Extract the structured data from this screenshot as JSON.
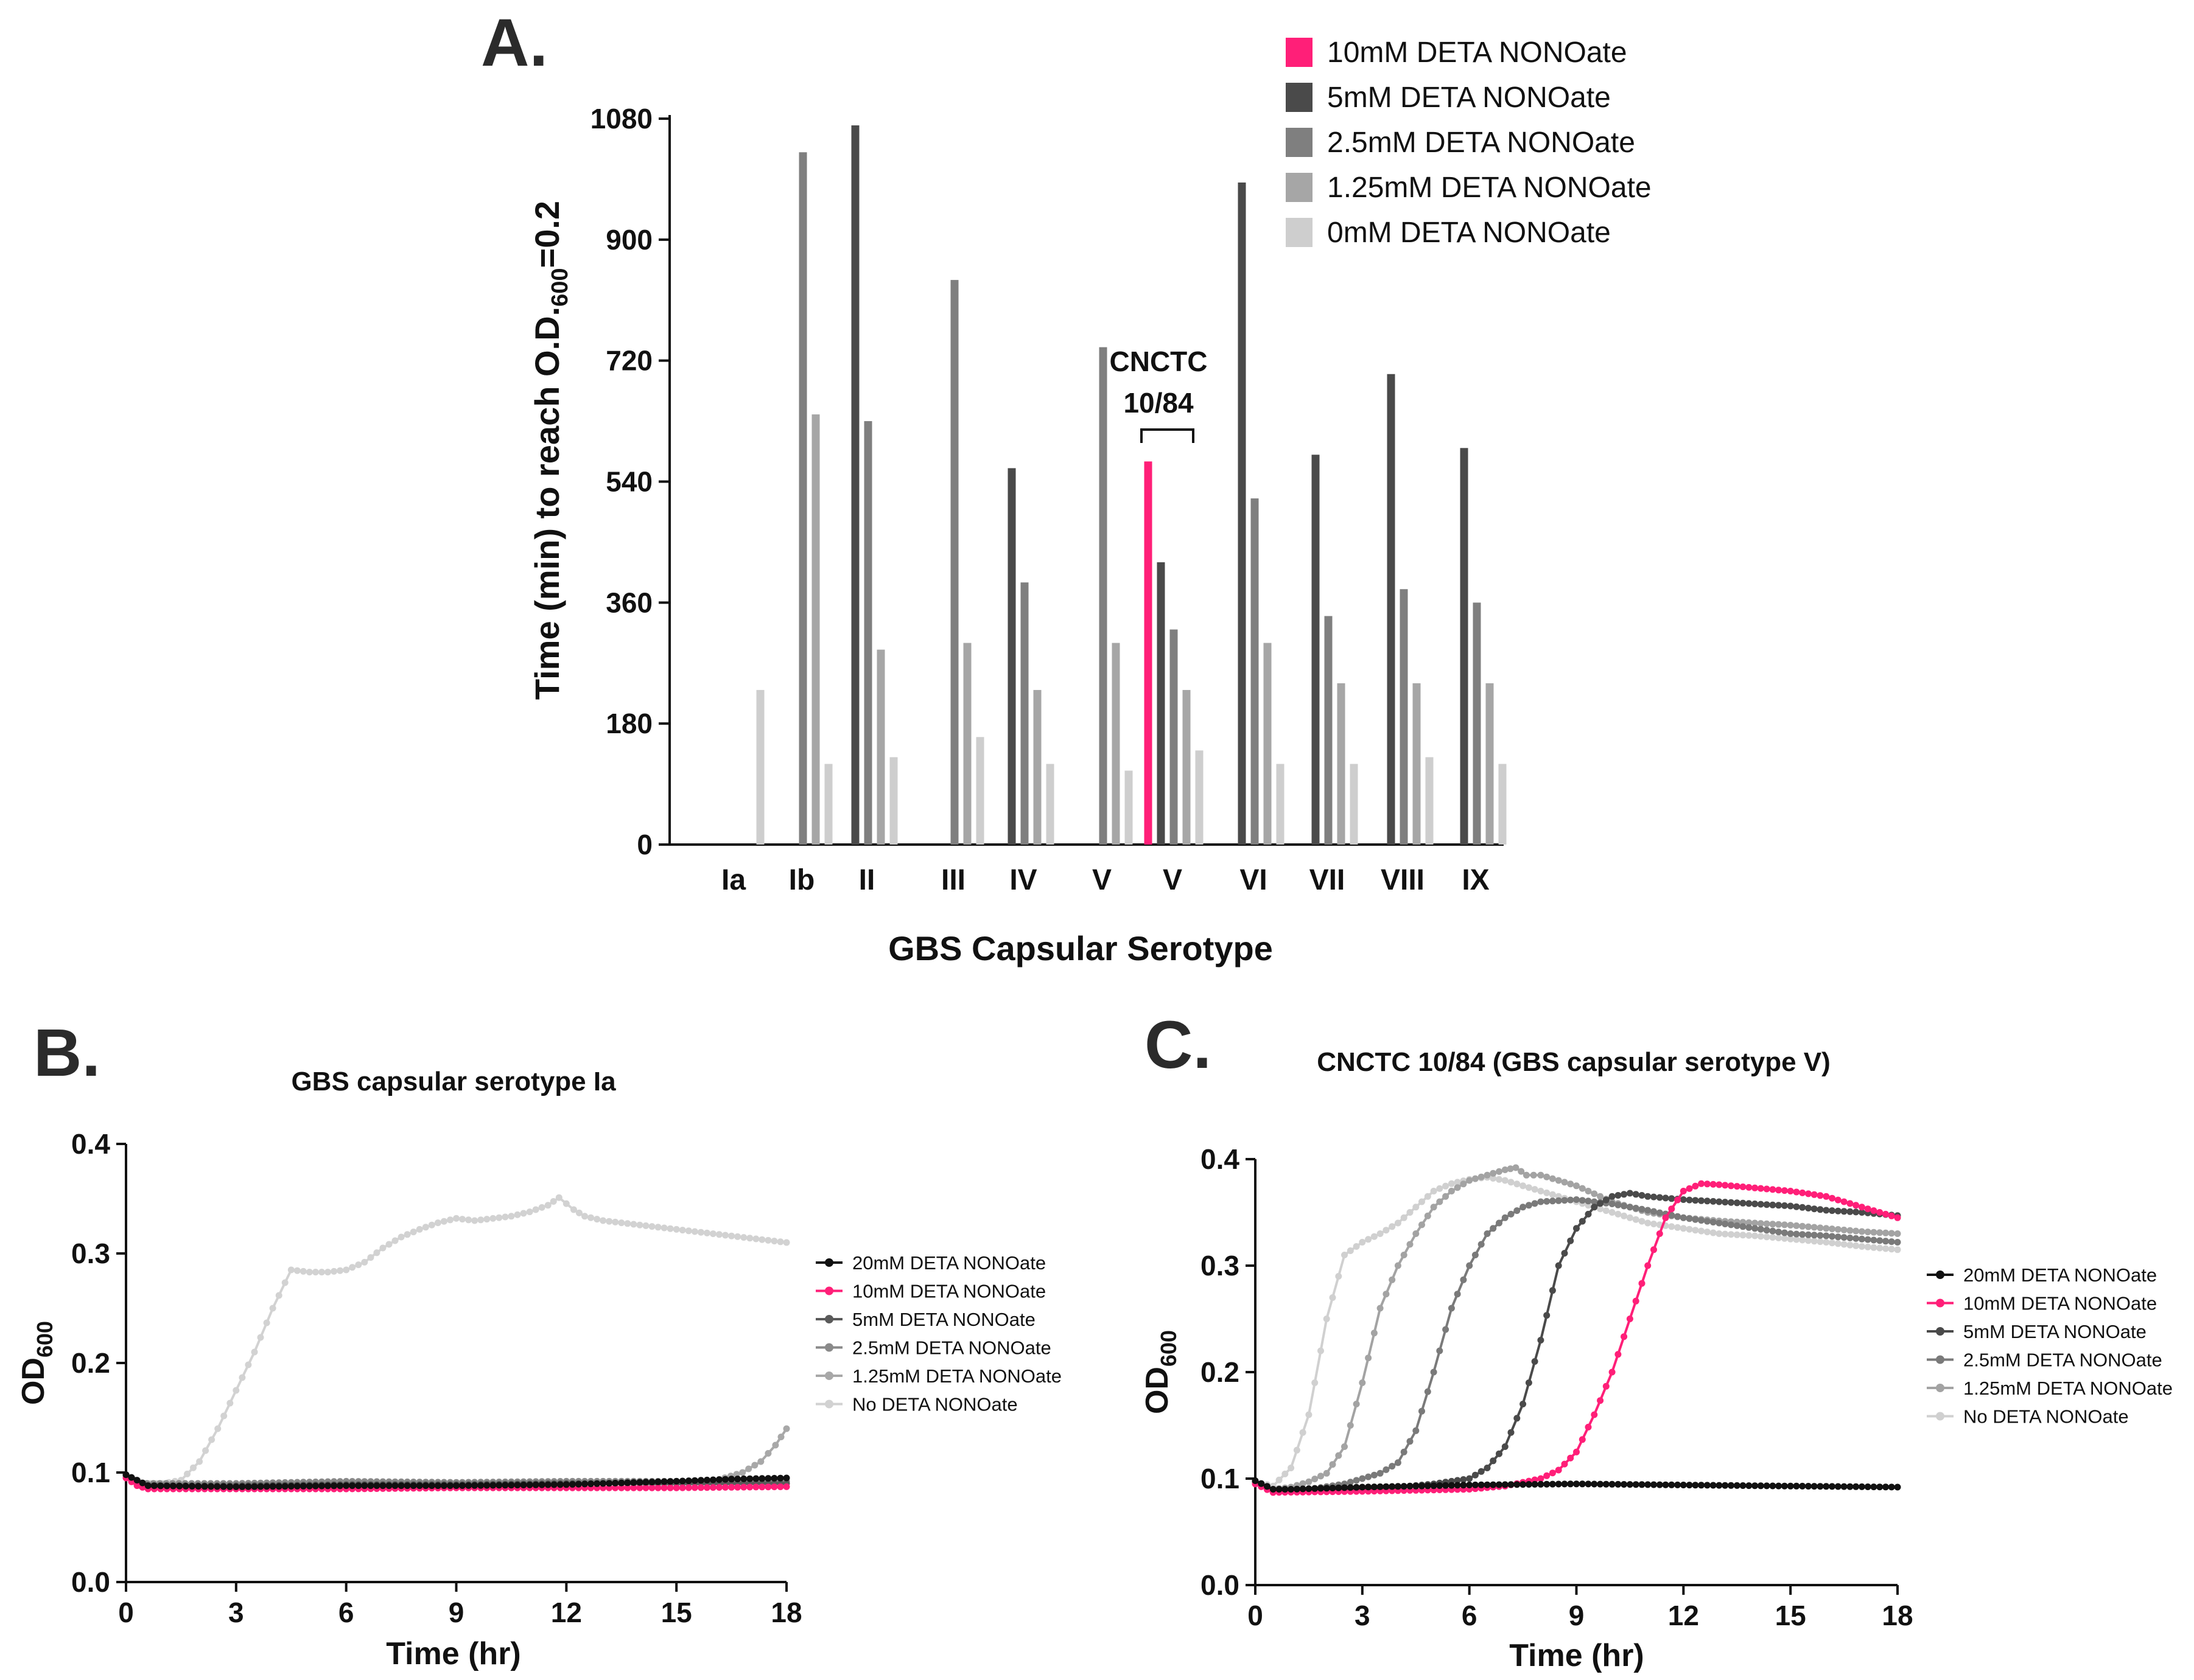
{
  "panels": {
    "a": {
      "letter": "A."
    },
    "b": {
      "letter": "B."
    },
    "c": {
      "letter": "C."
    }
  },
  "chart_data": [
    {
      "id": "A",
      "type": "bar",
      "title": "",
      "xlabel": "GBS Capsular Serotype",
      "ylabel": "Time (min) to reach O.D.600=0.2",
      "ylabel_parts": {
        "main": "Time (min) to reach O.D.",
        "sub": "600",
        "tail": "=0.2"
      },
      "ylim": [
        0,
        1080
      ],
      "yticks": [
        "0",
        "180",
        "360",
        "540",
        "720",
        "900",
        "1080"
      ],
      "annotation": {
        "line1": "CNCTC",
        "line2": "10/84"
      },
      "categories": [
        "Ia",
        "Ib",
        "II",
        "III",
        "IV",
        "V",
        "V",
        "VI",
        "VII",
        "VIII",
        "IX"
      ],
      "series": [
        {
          "name": "10mM DETA NONOate",
          "color": "#ff1f78",
          "values": [
            null,
            null,
            null,
            null,
            null,
            null,
            570,
            null,
            null,
            null,
            null
          ]
        },
        {
          "name": "5mM DETA NONOate",
          "color": "#4a4a4a",
          "values": [
            null,
            null,
            1070,
            null,
            560,
            null,
            420,
            985,
            580,
            700,
            590
          ]
        },
        {
          "name": "2.5mM DETA NONOate",
          "color": "#7f7f7f",
          "values": [
            null,
            1030,
            630,
            840,
            390,
            740,
            320,
            515,
            340,
            380,
            360
          ]
        },
        {
          "name": "1.25mM DETA NONOate",
          "color": "#a6a6a6",
          "values": [
            null,
            640,
            290,
            300,
            230,
            300,
            230,
            300,
            240,
            240,
            240
          ]
        },
        {
          "name": "0mM DETA NONOate",
          "color": "#cecece",
          "values": [
            230,
            120,
            130,
            160,
            120,
            110,
            140,
            120,
            120,
            130,
            120
          ]
        }
      ]
    },
    {
      "id": "B",
      "type": "line",
      "title": "GBS capsular serotype Ia",
      "xlabel": "Time (hr)",
      "ylabel_main": "OD",
      "ylabel_sub": "600",
      "xlim": [
        0,
        18
      ],
      "ylim": [
        0,
        0.4
      ],
      "xticks": [
        "0",
        "3",
        "6",
        "9",
        "12",
        "15",
        "18"
      ],
      "yticks": [
        "0.0",
        "0.1",
        "0.2",
        "0.3",
        "0.4"
      ],
      "legend_position": "right",
      "series": [
        {
          "name": "20mM DETA NONOate",
          "color": "#111111",
          "points": [
            [
              0,
              0.098
            ],
            [
              0.3,
              0.093
            ],
            [
              0.6,
              0.088
            ],
            [
              3,
              0.087
            ],
            [
              6,
              0.088
            ],
            [
              9,
              0.088
            ],
            [
              12,
              0.089
            ],
            [
              15,
              0.092
            ],
            [
              16.5,
              0.094
            ],
            [
              18,
              0.095
            ]
          ]
        },
        {
          "name": "10mM DETA NONOate",
          "color": "#ff1f78",
          "points": [
            [
              0,
              0.095
            ],
            [
              0.3,
              0.088
            ],
            [
              0.6,
              0.085
            ],
            [
              3,
              0.085
            ],
            [
              6,
              0.085
            ],
            [
              9,
              0.086
            ],
            [
              12,
              0.086
            ],
            [
              15,
              0.086
            ],
            [
              18,
              0.087
            ]
          ]
        },
        {
          "name": "5mM DETA NONOate",
          "color": "#5a5a5a",
          "points": [
            [
              0,
              0.098
            ],
            [
              0.4,
              0.088
            ],
            [
              3,
              0.088
            ],
            [
              6,
              0.089
            ],
            [
              9,
              0.089
            ],
            [
              12,
              0.09
            ],
            [
              15,
              0.09
            ],
            [
              18,
              0.09
            ]
          ]
        },
        {
          "name": "2.5mM DETA NONOate",
          "color": "#8a8a8a",
          "points": [
            [
              0,
              0.097
            ],
            [
              0.4,
              0.09
            ],
            [
              3,
              0.09
            ],
            [
              6,
              0.092
            ],
            [
              9,
              0.091
            ],
            [
              12,
              0.092
            ],
            [
              15,
              0.092
            ],
            [
              18,
              0.092
            ]
          ]
        },
        {
          "name": "1.25mM DETA NONOate",
          "color": "#a8a8a8",
          "points": [
            [
              0,
              0.097
            ],
            [
              0.4,
              0.09
            ],
            [
              3,
              0.09
            ],
            [
              6,
              0.09
            ],
            [
              9,
              0.09
            ],
            [
              12,
              0.09
            ],
            [
              15,
              0.09
            ],
            [
              16,
              0.092
            ],
            [
              16.8,
              0.1
            ],
            [
              17.3,
              0.11
            ],
            [
              17.7,
              0.125
            ],
            [
              18,
              0.14
            ]
          ]
        },
        {
          "name": "No DETA NONOate",
          "color": "#d2d2d2",
          "points": [
            [
              0,
              0.097
            ],
            [
              0.5,
              0.09
            ],
            [
              1,
              0.09
            ],
            [
              1.5,
              0.093
            ],
            [
              2,
              0.11
            ],
            [
              2.5,
              0.14
            ],
            [
              3,
              0.175
            ],
            [
              3.5,
              0.21
            ],
            [
              4,
              0.25
            ],
            [
              4.5,
              0.285
            ],
            [
              5,
              0.283
            ],
            [
              5.5,
              0.283
            ],
            [
              6,
              0.285
            ],
            [
              6.5,
              0.292
            ],
            [
              7,
              0.305
            ],
            [
              7.5,
              0.315
            ],
            [
              8,
              0.322
            ],
            [
              8.5,
              0.328
            ],
            [
              9,
              0.332
            ],
            [
              9.5,
              0.33
            ],
            [
              10,
              0.332
            ],
            [
              10.5,
              0.334
            ],
            [
              11,
              0.338
            ],
            [
              11.5,
              0.344
            ],
            [
              11.8,
              0.351
            ],
            [
              12.2,
              0.34
            ],
            [
              12.5,
              0.334
            ],
            [
              13,
              0.33
            ],
            [
              14,
              0.326
            ],
            [
              15,
              0.322
            ],
            [
              16,
              0.318
            ],
            [
              17,
              0.314
            ],
            [
              18,
              0.31
            ]
          ]
        }
      ]
    },
    {
      "id": "C",
      "type": "line",
      "title": "CNCTC 10/84 (GBS capsular serotype V)",
      "xlabel": "Time (hr)",
      "ylabel_main": "OD",
      "ylabel_sub": "600",
      "xlim": [
        0,
        18
      ],
      "ylim": [
        0,
        0.4
      ],
      "xticks": [
        "0",
        "3",
        "6",
        "9",
        "12",
        "15",
        "18"
      ],
      "yticks": [
        "0.0",
        "0.1",
        "0.2",
        "0.3",
        "0.4"
      ],
      "legend_position": "right",
      "series": [
        {
          "name": "20mM DETA NONOate",
          "color": "#111111",
          "points": [
            [
              0,
              0.098
            ],
            [
              0.5,
              0.09
            ],
            [
              1,
              0.09
            ],
            [
              3,
              0.092
            ],
            [
              6,
              0.094
            ],
            [
              9,
              0.095
            ],
            [
              12,
              0.094
            ],
            [
              15,
              0.093
            ],
            [
              18,
              0.092
            ]
          ]
        },
        {
          "name": "10mM DETA NONOate",
          "color": "#ff1f78",
          "points": [
            [
              0,
              0.095
            ],
            [
              0.5,
              0.087
            ],
            [
              3,
              0.088
            ],
            [
              6,
              0.09
            ],
            [
              7,
              0.093
            ],
            [
              8,
              0.1
            ],
            [
              8.5,
              0.108
            ],
            [
              9,
              0.125
            ],
            [
              9.5,
              0.16
            ],
            [
              10,
              0.2
            ],
            [
              10.5,
              0.25
            ],
            [
              11,
              0.3
            ],
            [
              11.5,
              0.345
            ],
            [
              12,
              0.37
            ],
            [
              12.5,
              0.377
            ],
            [
              13,
              0.376
            ],
            [
              14,
              0.373
            ],
            [
              15,
              0.37
            ],
            [
              16,
              0.365
            ],
            [
              17,
              0.355
            ],
            [
              18,
              0.345
            ]
          ]
        },
        {
          "name": "5mM DETA NONOate",
          "color": "#4a4a4a",
          "points": [
            [
              0,
              0.097
            ],
            [
              0.5,
              0.088
            ],
            [
              2,
              0.09
            ],
            [
              4,
              0.092
            ],
            [
              5,
              0.095
            ],
            [
              6,
              0.1
            ],
            [
              6.5,
              0.11
            ],
            [
              7,
              0.13
            ],
            [
              7.5,
              0.17
            ],
            [
              8,
              0.23
            ],
            [
              8.5,
              0.3
            ],
            [
              9,
              0.335
            ],
            [
              9.5,
              0.355
            ],
            [
              10,
              0.365
            ],
            [
              10.5,
              0.368
            ],
            [
              11,
              0.365
            ],
            [
              12,
              0.362
            ],
            [
              13,
              0.36
            ],
            [
              14,
              0.358
            ],
            [
              15,
              0.356
            ],
            [
              16,
              0.352
            ],
            [
              17,
              0.35
            ],
            [
              18,
              0.347
            ]
          ]
        },
        {
          "name": "2.5mM DETA NONOate",
          "color": "#7a7a7a",
          "points": [
            [
              0,
              0.097
            ],
            [
              0.5,
              0.088
            ],
            [
              1.5,
              0.09
            ],
            [
              2.5,
              0.095
            ],
            [
              3.5,
              0.105
            ],
            [
              4,
              0.115
            ],
            [
              4.5,
              0.145
            ],
            [
              5,
              0.2
            ],
            [
              5.5,
              0.26
            ],
            [
              6,
              0.3
            ],
            [
              6.5,
              0.33
            ],
            [
              7,
              0.345
            ],
            [
              7.5,
              0.355
            ],
            [
              8,
              0.36
            ],
            [
              9,
              0.362
            ],
            [
              10,
              0.358
            ],
            [
              11,
              0.352
            ],
            [
              12,
              0.345
            ],
            [
              13,
              0.34
            ],
            [
              14,
              0.335
            ],
            [
              15,
              0.33
            ],
            [
              16,
              0.328
            ],
            [
              17,
              0.325
            ],
            [
              18,
              0.322
            ]
          ]
        },
        {
          "name": "1.25mM DETA NONOate",
          "color": "#a3a3a3",
          "points": [
            [
              0,
              0.097
            ],
            [
              0.5,
              0.09
            ],
            [
              1,
              0.092
            ],
            [
              1.5,
              0.097
            ],
            [
              2,
              0.105
            ],
            [
              2.5,
              0.13
            ],
            [
              3,
              0.19
            ],
            [
              3.5,
              0.26
            ],
            [
              4,
              0.3
            ],
            [
              4.5,
              0.33
            ],
            [
              5,
              0.355
            ],
            [
              5.5,
              0.37
            ],
            [
              6,
              0.38
            ],
            [
              6.5,
              0.385
            ],
            [
              7,
              0.39
            ],
            [
              7.3,
              0.392
            ],
            [
              7.6,
              0.385
            ],
            [
              8,
              0.385
            ],
            [
              9,
              0.375
            ],
            [
              10,
              0.36
            ],
            [
              11,
              0.35
            ],
            [
              12,
              0.345
            ],
            [
              13,
              0.342
            ],
            [
              14,
              0.34
            ],
            [
              15,
              0.338
            ],
            [
              16,
              0.335
            ],
            [
              17,
              0.332
            ],
            [
              18,
              0.33
            ]
          ]
        },
        {
          "name": "No DETA NONOate",
          "color": "#d0d0d0",
          "points": [
            [
              0,
              0.097
            ],
            [
              0.5,
              0.093
            ],
            [
              1,
              0.11
            ],
            [
              1.5,
              0.16
            ],
            [
              2,
              0.25
            ],
            [
              2.5,
              0.31
            ],
            [
              3,
              0.322
            ],
            [
              3.5,
              0.33
            ],
            [
              4,
              0.34
            ],
            [
              4.5,
              0.355
            ],
            [
              5,
              0.37
            ],
            [
              5.5,
              0.377
            ],
            [
              6,
              0.381
            ],
            [
              6.5,
              0.383
            ],
            [
              7,
              0.38
            ],
            [
              8,
              0.37
            ],
            [
              9,
              0.36
            ],
            [
              10,
              0.35
            ],
            [
              11,
              0.34
            ],
            [
              12,
              0.335
            ],
            [
              13,
              0.33
            ],
            [
              14,
              0.328
            ],
            [
              15,
              0.325
            ],
            [
              16,
              0.322
            ],
            [
              17,
              0.318
            ],
            [
              18,
              0.315
            ]
          ]
        }
      ]
    }
  ]
}
